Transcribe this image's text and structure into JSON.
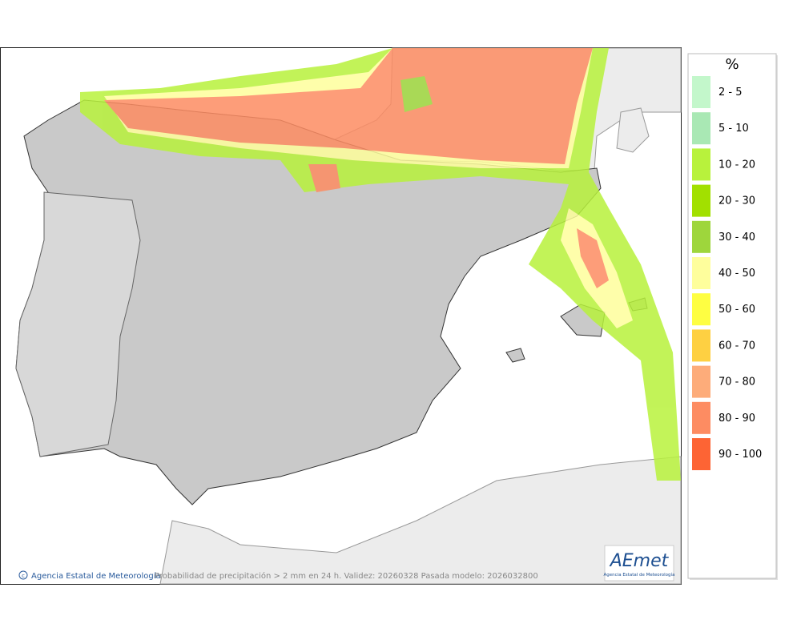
{
  "legend": {
    "title": "%",
    "items": [
      {
        "label": "2 - 5",
        "color": "#c3f7cb"
      },
      {
        "label": "5 - 10",
        "color": "#a9e8b4"
      },
      {
        "label": "10 - 20",
        "color": "#b8f23c"
      },
      {
        "label": "20 - 30",
        "color": "#a2e000"
      },
      {
        "label": "30 - 40",
        "color": "#9ed63c"
      },
      {
        "label": "40 - 50",
        "color": "#fefe9c"
      },
      {
        "label": "50 - 60",
        "color": "#fefe42"
      },
      {
        "label": "60 - 70",
        "color": "#fed042"
      },
      {
        "label": "70 - 80",
        "color": "#fdac7a"
      },
      {
        "label": "80 - 90",
        "color": "#fd8c62"
      },
      {
        "label": "90 - 100",
        "color": "#fd6434"
      }
    ]
  },
  "footer": {
    "credit": "Agencia Estatal de Meteorología",
    "caption": "Probabilidad de precipitación > 2 mm en 24 h. Validez: 20260328 Pasada modelo: 2026032800"
  },
  "logo": {
    "name": "AEmet",
    "subtitle": "Agencia Estatal de Meteorología"
  }
}
